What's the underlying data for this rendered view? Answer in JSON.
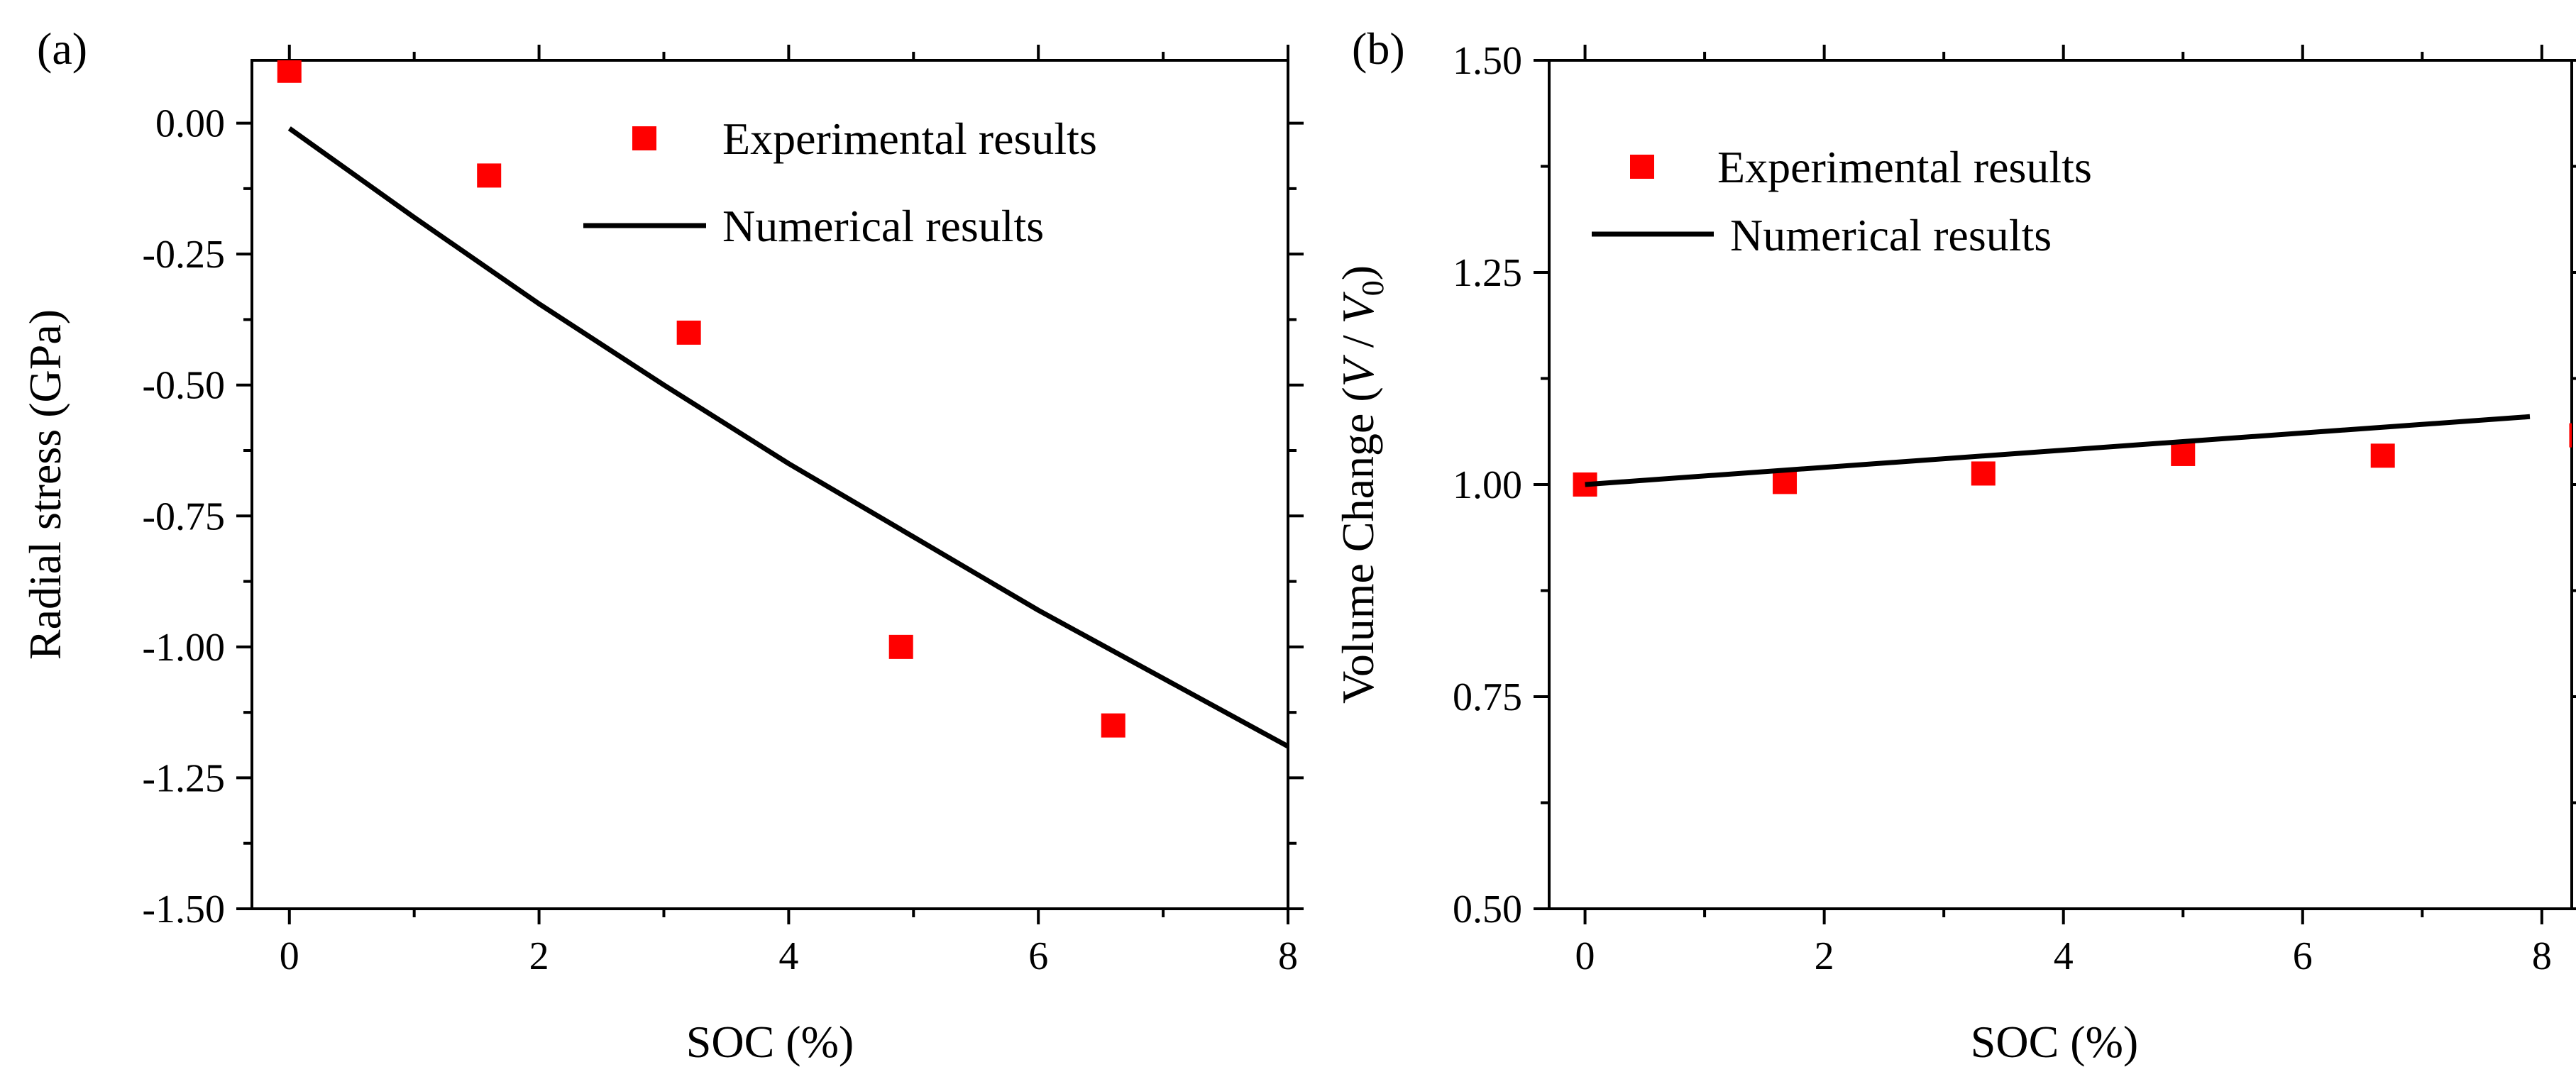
{
  "chart_data": [
    {
      "panel_label": "(a)",
      "type": "scatter+line",
      "xlabel": "SOC (%)",
      "ylabel": "Radial stress (GPa)",
      "xlim": [
        -0.3,
        8
      ],
      "ylim": [
        -1.5,
        0.12
      ],
      "xticks": [
        0,
        2,
        4,
        6,
        8
      ],
      "xtick_labels": [
        "0",
        "2",
        "4",
        "6",
        "8"
      ],
      "yticks": [
        0.0,
        -0.25,
        -0.5,
        -0.75,
        -1.0,
        -1.25,
        -1.5
      ],
      "ytick_labels": [
        "0.00",
        "-0.25",
        "-0.50",
        "-0.75",
        "-1.00",
        "-1.25",
        "-1.50"
      ],
      "grid": false,
      "legend": [
        "Experimental results",
        "Numerical results"
      ],
      "legend_position": "top-right",
      "series": [
        {
          "name": "Experimental results",
          "kind": "scatter",
          "color": "#ff0000",
          "x": [
            0,
            1.6,
            3.2,
            4.9,
            6.6
          ],
          "y": [
            0.1,
            -0.1,
            -0.4,
            -1.0,
            -1.15
          ]
        },
        {
          "name": "Numerical results",
          "kind": "line",
          "color": "#000000",
          "x": [
            0,
            1,
            2,
            3,
            4,
            5,
            6,
            7,
            8
          ],
          "y": [
            -0.01,
            -0.18,
            -0.345,
            -0.5,
            -0.65,
            -0.79,
            -0.93,
            -1.06,
            -1.19
          ]
        }
      ]
    },
    {
      "panel_label": "(b)",
      "type": "scatter+line",
      "xlabel": "SOC (%)",
      "ylabel": "Volume Change (V / V0)",
      "ylabel_parts": {
        "prefix": "Volume Change (",
        "v": "V",
        "slash": " / ",
        "v0": "V",
        "sub": "0",
        "suffix": ")"
      },
      "xlim": [
        -0.3,
        8.25
      ],
      "ylim": [
        0.5,
        1.5
      ],
      "xticks": [
        0,
        2,
        4,
        6,
        8
      ],
      "xtick_labels": [
        "0",
        "2",
        "4",
        "6",
        "8"
      ],
      "yticks": [
        0.5,
        0.75,
        1.0,
        1.25,
        1.5
      ],
      "ytick_labels": [
        "0.50",
        "0.75",
        "1.00",
        "1.25",
        "1.50"
      ],
      "grid": false,
      "legend": [
        "Experimental results",
        "Numerical results"
      ],
      "legend_position": "top-left",
      "series": [
        {
          "name": "Experimental results",
          "kind": "scatter",
          "color": "#ff0000",
          "x": [
            0,
            1.67,
            3.33,
            5.0,
            6.67,
            8.33
          ],
          "y": [
            1.0,
            1.003,
            1.013,
            1.036,
            1.034,
            1.058
          ]
        },
        {
          "name": "Numerical results",
          "kind": "line",
          "color": "#000000",
          "x": [
            0,
            7.9
          ],
          "y": [
            1.0,
            1.08
          ]
        }
      ]
    }
  ]
}
